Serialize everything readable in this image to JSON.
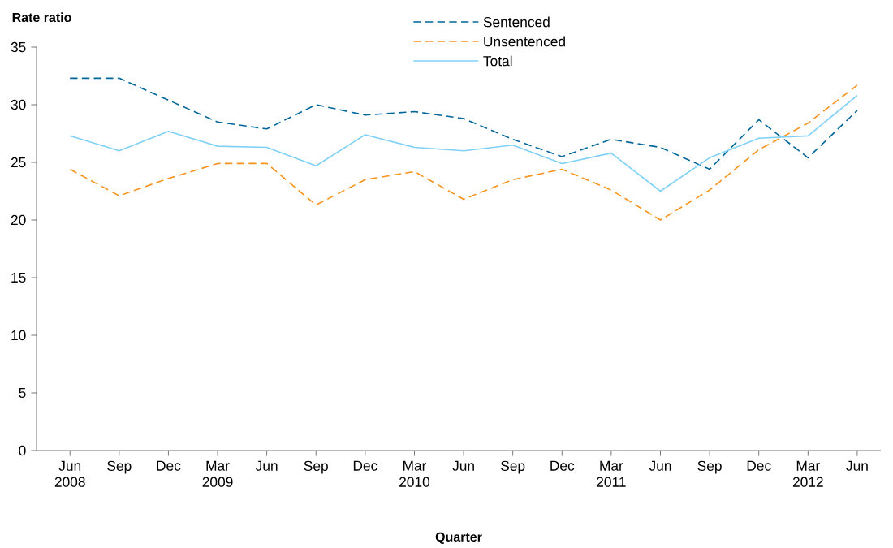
{
  "chart_data": {
    "type": "line",
    "xlabel": "Quarter",
    "ylabel": "Rate ratio",
    "categories": [
      "Jun 2008",
      "Sep",
      "Dec",
      "Mar 2009",
      "Jun",
      "Sep",
      "Dec",
      "Mar 2010",
      "Jun",
      "Sep",
      "Dec",
      "Mar 2011",
      "Jun",
      "Sep",
      "Dec",
      "Mar 2012",
      "Jun"
    ],
    "series": [
      {
        "name": "Sentenced",
        "color": "#00669a",
        "line_style": "dashed",
        "values": [
          32.3,
          32.3,
          30.4,
          28.5,
          27.9,
          30.0,
          29.1,
          29.4,
          28.8,
          27.0,
          25.5,
          27.0,
          26.3,
          24.4,
          28.7,
          25.4,
          29.5
        ]
      },
      {
        "name": "Unsentenced",
        "color": "#f7941d",
        "line_style": "dashed",
        "values": [
          24.4,
          22.1,
          23.6,
          24.9,
          24.9,
          21.3,
          23.5,
          24.2,
          21.8,
          23.5,
          24.4,
          22.6,
          20.0,
          22.6,
          26.1,
          28.4,
          31.7
        ]
      },
      {
        "name": "Total",
        "color": "#7fd0f7",
        "line_style": "solid",
        "values": [
          27.3,
          26.0,
          27.7,
          26.4,
          26.3,
          24.7,
          27.4,
          26.3,
          26.0,
          26.5,
          24.9,
          25.8,
          22.5,
          25.4,
          27.1,
          27.3,
          30.8
        ]
      }
    ],
    "ylim": [
      0,
      35
    ],
    "yticks": [
      0,
      5,
      10,
      15,
      20,
      25,
      30,
      35
    ],
    "legend": "top",
    "marker": "none",
    "grid": false
  }
}
